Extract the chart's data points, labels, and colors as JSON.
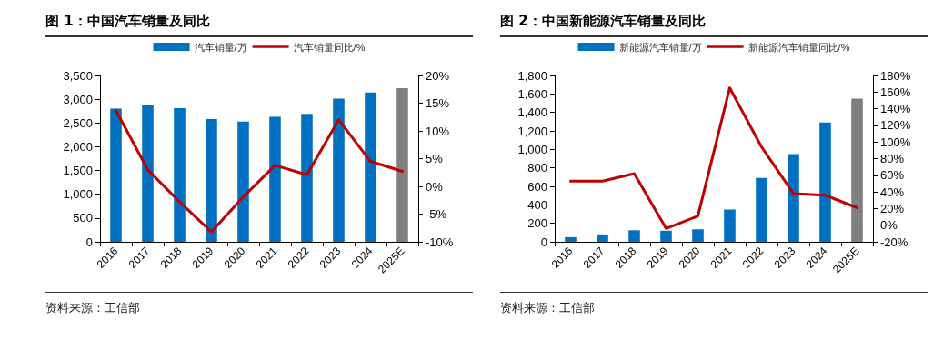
{
  "chart_data": [
    {
      "type": "bar",
      "title": "图 1：中国汽车销量及同比",
      "categories": [
        "2016",
        "2017",
        "2018",
        "2019",
        "2020",
        "2021",
        "2022",
        "2023",
        "2024",
        "2025E"
      ],
      "series": [
        {
          "name": "汽车销量/万",
          "color": "#0070c0",
          "colors": [
            "#0070c0",
            "#0070c0",
            "#0070c0",
            "#0070c0",
            "#0070c0",
            "#0070c0",
            "#0070c0",
            "#0070c0",
            "#0070c0",
            "#808080"
          ],
          "values": [
            2800,
            2890,
            2810,
            2580,
            2530,
            2630,
            2690,
            3010,
            3140,
            3230
          ]
        },
        {
          "type": "line",
          "name": "汽车销量同比/%",
          "color": "#c00000",
          "axis": "y2",
          "values": [
            13.7,
            3.0,
            -2.8,
            -8.2,
            -1.9,
            3.8,
            2.1,
            12.0,
            4.5,
            2.7
          ]
        }
      ],
      "ylim": [
        0,
        3500
      ],
      "yticks": [
        0,
        500,
        {
          "value": 1000,
          "label": "1,000"
        },
        {
          "value": 1500,
          "label": "1,500"
        },
        {
          "value": 2000,
          "label": "2,000"
        },
        {
          "value": 2500,
          "label": "2,500"
        },
        {
          "value": 3000,
          "label": "3,000"
        },
        {
          "value": 3500,
          "label": "3,500"
        }
      ],
      "y2lim": [
        -10,
        20
      ],
      "y2ticks": [
        {
          "value": -10,
          "label": "-10%"
        },
        {
          "value": -5,
          "label": "-5%"
        },
        {
          "value": 0,
          "label": "0%"
        },
        {
          "value": 5,
          "label": "5%"
        },
        {
          "value": 10,
          "label": "10%"
        },
        {
          "value": 15,
          "label": "15%"
        },
        {
          "value": 20,
          "label": "20%"
        }
      ],
      "legend": "top",
      "grid": false,
      "marker": "none",
      "line_style": "solid",
      "annotations": [
        "资料来源：工信部"
      ]
    },
    {
      "type": "bar",
      "title": "图 2：中国新能源汽车销量及同比",
      "categories": [
        "2016",
        "2017",
        "2018",
        "2019",
        "2020",
        "2021",
        "2022",
        "2023",
        "2024",
        "2025E"
      ],
      "series": [
        {
          "name": "新能源汽车销量/万",
          "color": "#0070c0",
          "colors": [
            "#0070c0",
            "#0070c0",
            "#0070c0",
            "#0070c0",
            "#0070c0",
            "#0070c0",
            "#0070c0",
            "#0070c0",
            "#0070c0",
            "#808080"
          ],
          "values": [
            50,
            80,
            125,
            120,
            135,
            350,
            690,
            950,
            1290,
            1550
          ]
        },
        {
          "type": "line",
          "name": "新能源汽车销量同比/%",
          "color": "#c00000",
          "axis": "y2",
          "values": [
            53,
            53,
            62,
            -4,
            11,
            165,
            94,
            38,
            36,
            21
          ]
        }
      ],
      "ylim": [
        0,
        1800
      ],
      "yticks": [
        0,
        200,
        400,
        600,
        800,
        {
          "value": 1000,
          "label": "1,000"
        },
        {
          "value": 1200,
          "label": "1,200"
        },
        {
          "value": 1400,
          "label": "1,400"
        },
        {
          "value": 1600,
          "label": "1,600"
        },
        {
          "value": 1800,
          "label": "1,800"
        }
      ],
      "y2lim": [
        -20,
        180
      ],
      "y2ticks": [
        {
          "value": -20,
          "label": "-20%"
        },
        {
          "value": 0,
          "label": "0%"
        },
        {
          "value": 20,
          "label": "20%"
        },
        {
          "value": 40,
          "label": "40%"
        },
        {
          "value": 60,
          "label": "60%"
        },
        {
          "value": 80,
          "label": "80%"
        },
        {
          "value": 100,
          "label": "100%"
        },
        {
          "value": 120,
          "label": "120%"
        },
        {
          "value": 140,
          "label": "140%"
        },
        {
          "value": 160,
          "label": "160%"
        },
        {
          "value": 180,
          "label": "180%"
        }
      ],
      "legend": "top",
      "grid": false,
      "marker": "none",
      "line_style": "solid",
      "annotations": [
        "资料来源：工信部"
      ]
    }
  ]
}
